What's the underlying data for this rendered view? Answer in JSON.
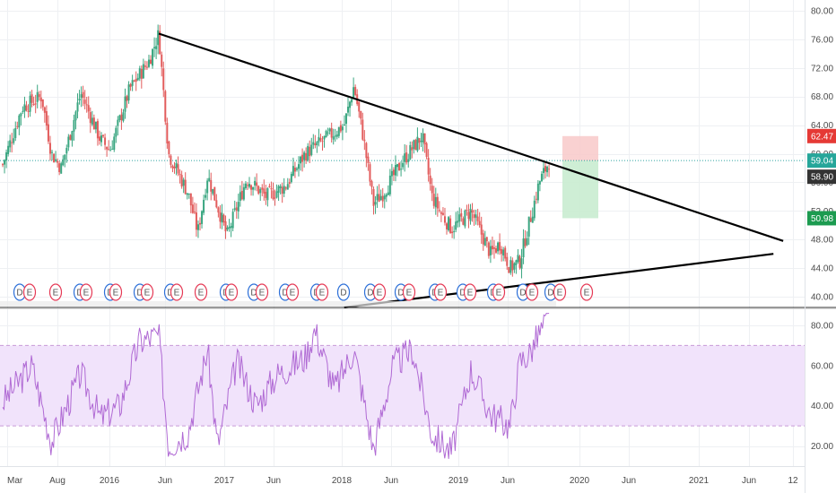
{
  "colors": {
    "background": "#ffffff",
    "grid": "#eef0f3",
    "up": "#3aa681",
    "down": "#e25c5c",
    "trendline": "#000000",
    "rsi_line": "#b06ad4",
    "rsi_band": "#f1e3fb",
    "rsi_level": "#c89ad8",
    "current_price_line": "#2ea5a0",
    "target_profit": "#c9ecd0",
    "stop_loss": "#f8c9c9",
    "badge_red": "#e53935",
    "badge_green": "#1c9b50",
    "badge_teal": "#26a69a",
    "badge_dark": "#333333",
    "event_dividend": "#2c6fd8",
    "event_earnings": "#e53955"
  },
  "price_axis": {
    "ticks": [
      "80.00",
      "76.00",
      "72.00",
      "68.00",
      "64.00",
      "60.00",
      "56.00",
      "52.00",
      "48.00",
      "44.00",
      "40.00"
    ],
    "range": [
      38.5,
      81.5
    ]
  },
  "rsi_axis": {
    "ticks": [
      "80.00",
      "60.00",
      "40.00",
      "20.00"
    ],
    "range": [
      10,
      88
    ],
    "upper_level": 70,
    "lower_level": 30
  },
  "time_axis": {
    "labels": [
      "Mar",
      "Aug",
      "2016",
      "Jun",
      "2017",
      "Jun",
      "2018",
      "Jun",
      "2019",
      "Jun",
      "2020",
      "Jun",
      "2021",
      "Jun",
      "12"
    ]
  },
  "price_badges": {
    "stop": "62.47",
    "current_teal": "59.04",
    "current_dark": "58.90",
    "target": "50.98"
  },
  "events": {
    "dividend_letter": "D",
    "earnings_letter": "E"
  },
  "chart_data": [
    {
      "type": "candlestick",
      "x_range": [
        "2015-03",
        "2021-12"
      ],
      "ylim": [
        38.5,
        81.5
      ],
      "approx_close_path": [
        {
          "x": "2015-03",
          "y": 58.5
        },
        {
          "x": "2015-05",
          "y": 66.5
        },
        {
          "x": "2015-07",
          "y": 68.0
        },
        {
          "x": "2015-08",
          "y": 60.0
        },
        {
          "x": "2015-09",
          "y": 58.0
        },
        {
          "x": "2015-11",
          "y": 68.5
        },
        {
          "x": "2016-01",
          "y": 62.0
        },
        {
          "x": "2016-02",
          "y": 60.5
        },
        {
          "x": "2016-04",
          "y": 69.0
        },
        {
          "x": "2016-06",
          "y": 73.0
        },
        {
          "x": "2016-07",
          "y": 76.8
        },
        {
          "x": "2016-08",
          "y": 60.0
        },
        {
          "x": "2016-10",
          "y": 54.5
        },
        {
          "x": "2016-11",
          "y": 49.0
        },
        {
          "x": "2016-12",
          "y": 57.0
        },
        {
          "x": "2017-02",
          "y": 48.5
        },
        {
          "x": "2017-04",
          "y": 56.5
        },
        {
          "x": "2017-06",
          "y": 54.0
        },
        {
          "x": "2017-08",
          "y": 55.5
        },
        {
          "x": "2017-10",
          "y": 60.0
        },
        {
          "x": "2017-12",
          "y": 62.0
        },
        {
          "x": "2018-02",
          "y": 64.0
        },
        {
          "x": "2018-03",
          "y": 69.5
        },
        {
          "x": "2018-04",
          "y": 62.0
        },
        {
          "x": "2018-05",
          "y": 53.0
        },
        {
          "x": "2018-06",
          "y": 54.5
        },
        {
          "x": "2018-08",
          "y": 59.0
        },
        {
          "x": "2018-10",
          "y": 62.5
        },
        {
          "x": "2018-11",
          "y": 54.0
        },
        {
          "x": "2018-12",
          "y": 51.5
        },
        {
          "x": "2019-01",
          "y": 49.5
        },
        {
          "x": "2019-03",
          "y": 52.0
        },
        {
          "x": "2019-05",
          "y": 46.0
        },
        {
          "x": "2019-06",
          "y": 47.5
        },
        {
          "x": "2019-07",
          "y": 44.0
        },
        {
          "x": "2019-08",
          "y": 45.0
        },
        {
          "x": "2019-09",
          "y": 50.5
        },
        {
          "x": "2019-10",
          "y": 56.0
        },
        {
          "x": "2019-11",
          "y": 58.9
        }
      ],
      "trendlines": [
        {
          "name": "",
          "from": {
            "x": "2016-07",
            "y": 76.8
          },
          "to": {
            "x": "2021-11",
            "y": 47.8
          }
        },
        {
          "name": "",
          "from": {
            "x": "2018-02",
            "y": 38.5
          },
          "to": {
            "x": "2021-10",
            "y": 46.0
          }
        }
      ],
      "position": {
        "entry": 59.04,
        "stop": 62.47,
        "target": 50.98
      },
      "last_price": 58.9,
      "grid": true
    },
    {
      "type": "line",
      "ylim": [
        10,
        88
      ],
      "levels": [
        30,
        70
      ],
      "approx_path": [
        {
          "x": "2015-03",
          "y": 42
        },
        {
          "x": "2015-06",
          "y": 60
        },
        {
          "x": "2015-08",
          "y": 22
        },
        {
          "x": "2015-11",
          "y": 56
        },
        {
          "x": "2016-01",
          "y": 34
        },
        {
          "x": "2016-03",
          "y": 40
        },
        {
          "x": "2016-05",
          "y": 72
        },
        {
          "x": "2016-07",
          "y": 75
        },
        {
          "x": "2016-08",
          "y": 20
        },
        {
          "x": "2016-10",
          "y": 27
        },
        {
          "x": "2016-12",
          "y": 68
        },
        {
          "x": "2017-01",
          "y": 20
        },
        {
          "x": "2017-03",
          "y": 62
        },
        {
          "x": "2017-05",
          "y": 40
        },
        {
          "x": "2017-07",
          "y": 55
        },
        {
          "x": "2017-10",
          "y": 64
        },
        {
          "x": "2017-11",
          "y": 78
        },
        {
          "x": "2018-01",
          "y": 48
        },
        {
          "x": "2018-03",
          "y": 68
        },
        {
          "x": "2018-05",
          "y": 18
        },
        {
          "x": "2018-07",
          "y": 60
        },
        {
          "x": "2018-09",
          "y": 68
        },
        {
          "x": "2018-11",
          "y": 26
        },
        {
          "x": "2019-01",
          "y": 17
        },
        {
          "x": "2019-03",
          "y": 58
        },
        {
          "x": "2019-05",
          "y": 36
        },
        {
          "x": "2019-07",
          "y": 30
        },
        {
          "x": "2019-08",
          "y": 62
        },
        {
          "x": "2019-09",
          "y": 66
        },
        {
          "x": "2019-10",
          "y": 76
        },
        {
          "x": "2019-11",
          "y": 83
        }
      ]
    }
  ]
}
